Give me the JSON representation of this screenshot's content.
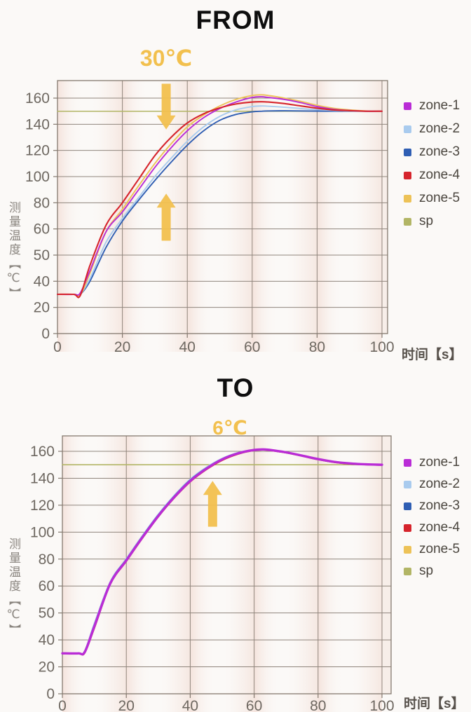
{
  "page": {
    "background": "#fbf9f7"
  },
  "colors": {
    "annotation_gold": "#f2c04e",
    "grid": "#8f857c",
    "frame": "#84796f",
    "tick_text": "#6e6861",
    "legend_text": "#4b463f",
    "title_text": "#0e0e0e",
    "axis_title_text": "#8a857f",
    "band_pink": "#eecdc1",
    "setpoint_line": "#b2b565"
  },
  "chart_data": [
    {
      "id": "from",
      "type": "line",
      "title": "FROM",
      "x_axis_label": "时间【s】",
      "y_axis_label": "测量温度【℃】",
      "x_ticks": [
        0,
        20,
        40,
        60,
        80,
        100
      ],
      "y_ticks": [
        0,
        20,
        40,
        50,
        60,
        80,
        100,
        120,
        140,
        160
      ],
      "x_range": [
        0,
        100
      ],
      "grid": true,
      "legend_position": "right",
      "annotation": {
        "label": "30℃",
        "t": 33.5,
        "arrows": [
          {
            "direction": "down",
            "t": 33.5,
            "tail_value": 171,
            "head_value": 136
          },
          {
            "direction": "up",
            "t": 33.5,
            "tail_value": 55.5,
            "head_value": 87
          }
        ]
      },
      "x_values": [
        0,
        5,
        7,
        10,
        15,
        20,
        25,
        30,
        35,
        40,
        45,
        50,
        55,
        60,
        63,
        65,
        70,
        75,
        80,
        85,
        90,
        95,
        100
      ],
      "series": [
        {
          "name": "zone-1",
          "color": "#b92cd6",
          "stroke_width": 1.9,
          "values": [
            30,
            30,
            31,
            44,
            59,
            73,
            90,
            107,
            122,
            135,
            145,
            152,
            157,
            160.5,
            161,
            160.5,
            159,
            156.5,
            153.5,
            151.5,
            150.5,
            150,
            150
          ]
        },
        {
          "name": "zone-2",
          "color": "#a9cbee",
          "stroke_width": 1.9,
          "values": [
            30,
            30,
            30,
            41,
            55,
            68,
            84,
            100,
            114,
            127,
            138,
            146,
            151,
            153.5,
            154,
            153.8,
            153,
            152,
            151.2,
            150.6,
            150.2,
            150,
            150
          ]
        },
        {
          "name": "zone-3",
          "color": "#2f5eb3",
          "stroke_width": 1.9,
          "values": [
            30,
            30,
            30,
            40,
            53,
            66,
            82,
            97,
            111,
            124,
            135,
            143,
            147.5,
            149.5,
            150,
            150.2,
            150.3,
            150.2,
            150.1,
            150,
            150,
            150,
            150
          ]
        },
        {
          "name": "zone-4",
          "color": "#d6242c",
          "stroke_width": 2.1,
          "values": [
            30,
            30,
            29,
            46,
            63,
            80,
            98,
            116,
            130,
            141,
            148,
            152.5,
            155.5,
            157,
            157.2,
            157,
            155.8,
            154,
            152.3,
            151,
            150.4,
            150,
            150
          ]
        },
        {
          "name": "zone-5",
          "color": "#edc257",
          "stroke_width": 1.9,
          "values": [
            30,
            30,
            29.5,
            43,
            59,
            75,
            93,
            110,
            125,
            138,
            147,
            154,
            159,
            162,
            162.5,
            162,
            160,
            157.5,
            154.5,
            152.3,
            151,
            150.2,
            150
          ]
        },
        {
          "name": "sp",
          "color": "#b2b565",
          "stroke_width": 1.5,
          "values": [
            150,
            150,
            150,
            150,
            150,
            150,
            150,
            150,
            150,
            150,
            150,
            150,
            150,
            150,
            150,
            150,
            150,
            150,
            150,
            150,
            150,
            150,
            150
          ]
        }
      ],
      "draw_order": [
        "sp",
        "zone-3",
        "zone-2",
        "zone-5",
        "zone-1",
        "zone-4"
      ]
    },
    {
      "id": "to",
      "type": "line",
      "title": "TO",
      "x_axis_label": "时间【s】",
      "y_axis_label": "测量温度【℃】",
      "x_ticks": [
        0,
        20,
        40,
        60,
        80,
        100
      ],
      "y_ticks": [
        0,
        20,
        40,
        50,
        60,
        80,
        100,
        120,
        140,
        160
      ],
      "x_range": [
        0,
        100
      ],
      "grid": true,
      "legend_position": "right",
      "annotation": {
        "label": "6℃",
        "t": 52,
        "arrows": [
          {
            "direction": "up",
            "t": 47,
            "tail_value": 104,
            "head_value": 138
          }
        ]
      },
      "x_values": [
        0,
        5,
        7,
        10,
        15,
        20,
        25,
        30,
        35,
        40,
        45,
        50,
        55,
        60,
        63,
        65,
        70,
        75,
        80,
        85,
        90,
        95,
        100
      ],
      "series": [
        {
          "name": "zone-1",
          "color": "#b92cd6",
          "stroke_width": 3.4,
          "values": [
            30,
            30,
            31,
            45,
            62,
            79,
            96,
            112,
            126,
            138,
            147,
            154,
            158.5,
            161,
            161.4,
            161,
            159.2,
            156.8,
            154.2,
            152.2,
            151,
            150.3,
            150
          ]
        },
        {
          "name": "zone-2",
          "color": "#a9cbee",
          "stroke_width": 2.2,
          "values": [
            30,
            30,
            31.8,
            46,
            63.2,
            80.2,
            97.2,
            113.2,
            127.2,
            139.2,
            148,
            154.7,
            159,
            161.2,
            161.5,
            161.1,
            159.3,
            157,
            154.4,
            152.4,
            151.1,
            150.4,
            150
          ]
        },
        {
          "name": "zone-3",
          "color": "#2f5eb3",
          "stroke_width": 2.2,
          "values": [
            30,
            30,
            31.4,
            45.5,
            62.6,
            79.6,
            96.6,
            112.6,
            126.6,
            138.6,
            147.4,
            154.3,
            158.8,
            161.1,
            161.4,
            161,
            159.2,
            156.9,
            154.3,
            152.3,
            151,
            150.3,
            150
          ]
        },
        {
          "name": "zone-4",
          "color": "#d6242c",
          "stroke_width": 2.2,
          "values": [
            30,
            30,
            30.4,
            44.4,
            61.4,
            78.4,
            95.4,
            111.4,
            125.4,
            137.4,
            146.4,
            153.4,
            158,
            160.7,
            161.1,
            160.7,
            158.9,
            156.5,
            153.9,
            151.9,
            150.7,
            150.1,
            149.8
          ]
        },
        {
          "name": "zone-5",
          "color": "#edc257",
          "stroke_width": 2.2,
          "values": [
            30,
            30,
            30.7,
            44.7,
            61.7,
            78.7,
            95.7,
            111.7,
            125.7,
            137.7,
            146.7,
            153.7,
            158.2,
            160.8,
            161.2,
            160.8,
            159,
            156.6,
            154,
            152,
            150.8,
            150.2,
            149.9
          ]
        },
        {
          "name": "sp",
          "color": "#b2b565",
          "stroke_width": 1.7,
          "values": [
            150,
            150,
            150,
            150,
            150,
            150,
            150,
            150,
            150,
            150,
            150,
            150,
            150,
            150,
            150,
            150,
            150,
            150,
            150,
            150,
            150,
            150,
            150
          ]
        }
      ],
      "draw_order": [
        "sp",
        "zone-2",
        "zone-3",
        "zone-5",
        "zone-4",
        "zone-1"
      ]
    }
  ]
}
